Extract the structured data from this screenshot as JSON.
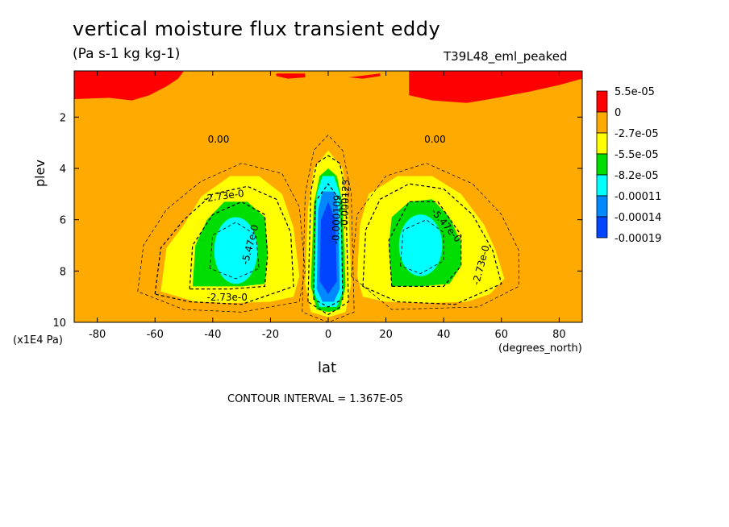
{
  "header": {
    "title": "vertical moisture flux transient eddy",
    "units": "(Pa s-1 kg kg-1)",
    "run_label": "T39L48_eml_peaked"
  },
  "footer": {
    "contour_interval": "CONTOUR INTERVAL = 1.367E-05"
  },
  "axes": {
    "xlabel": "lat",
    "xunits": "(degrees_north)",
    "ylabel": "plev",
    "yunits": "(x1E4 Pa)"
  },
  "chart_data": {
    "type": "heatmap",
    "subtype": "filled contour",
    "title": "vertical moisture flux transient eddy",
    "xlabel": "lat",
    "ylabel": "plev",
    "xlim": [
      -88,
      88
    ],
    "ylim": [
      10,
      0.2
    ],
    "xticks": [
      -80,
      -60,
      -40,
      -20,
      0,
      20,
      40,
      60,
      80
    ],
    "yticks": [
      2,
      4,
      6,
      8,
      10
    ],
    "legend": {
      "position": "right",
      "levels": [
        "5.5e-05",
        "0",
        "-2.7e-05",
        "-5.5e-05",
        "-8.2e-05",
        "-0.00011",
        "-0.00014",
        "-0.00019"
      ],
      "colors": [
        "#ff0000",
        "#ffaa00",
        "#ffff00",
        "#00dd00",
        "#00ffff",
        "#0088ff",
        "#0044ff"
      ]
    },
    "contour_labels": [
      "0.00",
      "0.00",
      "-2.73e-0",
      "-2.73e-0",
      "-2.73e-0",
      "-5.47e-0",
      "-5.47e-0",
      "-0.000109",
      "-0.000123"
    ],
    "features": [
      {
        "name": "upper positive band SH",
        "lat_range": [
          -88,
          -50
        ],
        "plev_range": [
          0.2,
          1.5
        ],
        "level": "5.5e-05"
      },
      {
        "name": "upper positive band NH",
        "lat_range": [
          30,
          88
        ],
        "plev_range": [
          0.2,
          1.5
        ],
        "level": "5.5e-05"
      },
      {
        "name": "SH midlatitude minimum",
        "lat": -32,
        "plev": 7.2,
        "level": "-0.00011"
      },
      {
        "name": "NH midlatitude minimum",
        "lat": 32,
        "plev": 7.0,
        "level": "-0.00011"
      },
      {
        "name": "equatorial minimum",
        "lat": 0,
        "plev": 7.0,
        "level": "-0.00019"
      }
    ]
  }
}
